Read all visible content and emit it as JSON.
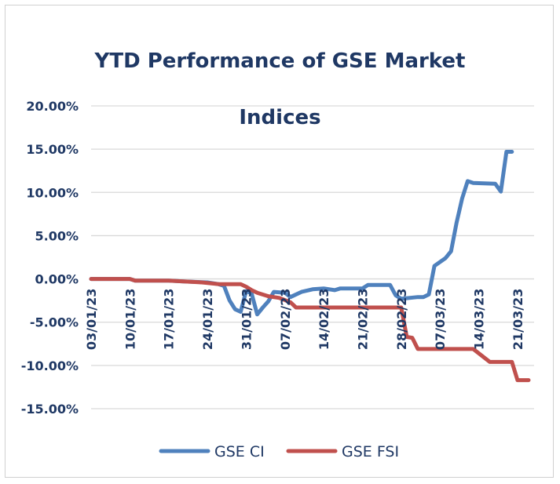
{
  "chart_data": {
    "type": "line",
    "title": "YTD Performance of GSE Market Indices",
    "title_lines": [
      "YTD Performance of GSE Market",
      "Indices"
    ],
    "ylim": [
      -15,
      20
    ],
    "yticks": [
      20,
      15,
      10,
      5,
      0,
      -5,
      -10,
      -15
    ],
    "ytick_labels": [
      "20.00%",
      "15.00%",
      "10.00%",
      "5.00%",
      "0.00%",
      "-5.00%",
      "-10.00%",
      "-15.00%"
    ],
    "x_labels": [
      "03/01/23",
      "10/01/23",
      "17/01/23",
      "24/01/23",
      "31/01/23",
      "07/02/23",
      "14/02/23",
      "21/02/23",
      "28/02/23",
      "07/03/23",
      "14/03/23",
      "21/03/23"
    ],
    "x_label_days": [
      0,
      7,
      14,
      21,
      28,
      35,
      42,
      49,
      56,
      63,
      70,
      77
    ],
    "x_range": [
      0,
      80
    ],
    "series": [
      {
        "name": "GSE CI",
        "color": "#4f81bd",
        "points": [
          [
            0,
            0
          ],
          [
            7,
            0
          ],
          [
            8,
            -0.2
          ],
          [
            14,
            -0.2
          ],
          [
            17,
            -0.3
          ],
          [
            21,
            -0.4
          ],
          [
            23,
            -0.6
          ],
          [
            24,
            -0.8
          ],
          [
            25,
            -2.5
          ],
          [
            26,
            -3.5
          ],
          [
            27,
            -3.8
          ],
          [
            28,
            -1.4
          ],
          [
            29,
            -1.7
          ],
          [
            30,
            -4.1
          ],
          [
            31,
            -3.3
          ],
          [
            32,
            -2.6
          ],
          [
            33,
            -1.5
          ],
          [
            35,
            -1.6
          ],
          [
            36,
            -2.1
          ],
          [
            38,
            -1.5
          ],
          [
            40,
            -1.2
          ],
          [
            42,
            -1.1
          ],
          [
            44,
            -1.3
          ],
          [
            45,
            -1.1
          ],
          [
            49,
            -1.1
          ],
          [
            50,
            -0.7
          ],
          [
            54,
            -0.7
          ],
          [
            55,
            -1.9
          ],
          [
            56,
            -2.3
          ],
          [
            59,
            -2.1
          ],
          [
            60,
            -2.1
          ],
          [
            61,
            -1.8
          ],
          [
            62,
            1.5
          ],
          [
            64,
            2.4
          ],
          [
            65,
            3.2
          ],
          [
            66,
            6.5
          ],
          [
            67,
            9.3
          ],
          [
            68,
            11.3
          ],
          [
            69,
            11.1
          ],
          [
            73,
            11.0
          ],
          [
            74,
            10.1
          ],
          [
            75,
            14.7
          ],
          [
            76,
            14.7
          ]
        ]
      },
      {
        "name": "GSE FSI",
        "color": "#c0504d",
        "points": [
          [
            0,
            0
          ],
          [
            7,
            0
          ],
          [
            8,
            -0.2
          ],
          [
            14,
            -0.2
          ],
          [
            20,
            -0.4
          ],
          [
            23,
            -0.6
          ],
          [
            27,
            -0.6
          ],
          [
            28,
            -0.9
          ],
          [
            29,
            -1.3
          ],
          [
            30,
            -1.6
          ],
          [
            32,
            -2.0
          ],
          [
            34,
            -2.2
          ],
          [
            36,
            -2.7
          ],
          [
            37,
            -3.3
          ],
          [
            56,
            -3.3
          ],
          [
            57,
            -6.7
          ],
          [
            58,
            -6.8
          ],
          [
            59,
            -8.1
          ],
          [
            69,
            -8.1
          ],
          [
            72,
            -9.6
          ],
          [
            76,
            -9.6
          ],
          [
            77,
            -11.7
          ],
          [
            79,
            -11.7
          ]
        ]
      }
    ],
    "legend": [
      "GSE CI",
      "GSE FSI"
    ],
    "legend_position": "bottom-center",
    "grid": true
  }
}
